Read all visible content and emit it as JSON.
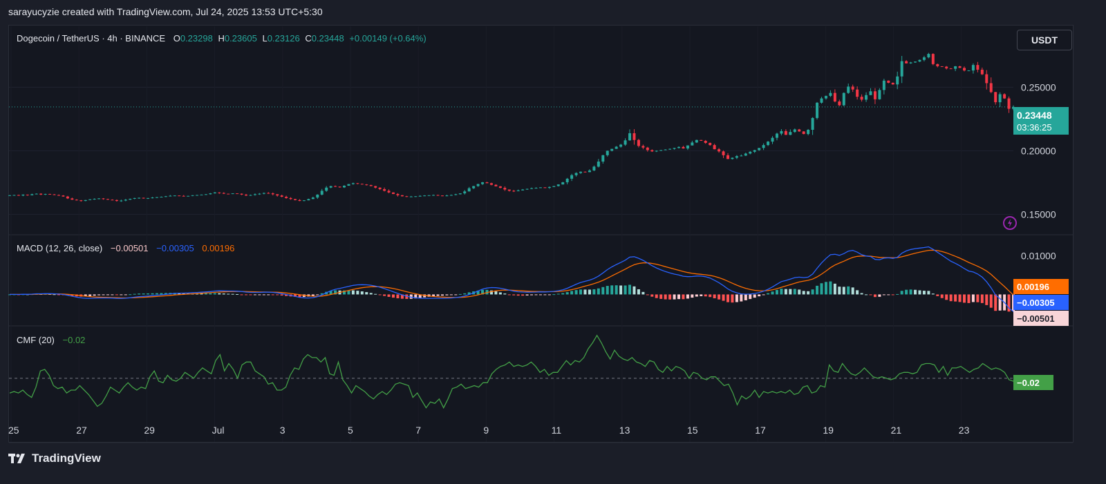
{
  "header": {
    "watermark": "sarayucyzie created with TradingView.com, Jul 24, 2025 13:53 UTC+5:30"
  },
  "currency_button": "USDT",
  "legend": {
    "symbol": "Dogecoin / TetherUS · 4h · BINANCE",
    "o_label": "O",
    "o_value": "0.23298",
    "h_label": "H",
    "h_value": "0.23605",
    "l_label": "L",
    "l_value": "0.23126",
    "c_label": "C",
    "c_value": "0.23448",
    "change": "+0.00149 (+0.64%)"
  },
  "macd_legend": {
    "name": "MACD (12, 26, close)",
    "hist": "−0.00501",
    "macd": "−0.00305",
    "signal": "0.00196"
  },
  "cmf_legend": {
    "name": "CMF (20)",
    "value": "−0.02"
  },
  "price_tag": {
    "price": "0.23448",
    "countdown": "03:36:25"
  },
  "macd_tags": {
    "signal": "0.00196",
    "macd": "−0.00305",
    "hist": "−0.00501"
  },
  "cmf_tag": "−0.02",
  "footer": {
    "brand": "TradingView"
  },
  "colors": {
    "up": "#26a69a",
    "down": "#f23645",
    "macd": "#2962ff",
    "signal": "#ff6d00",
    "cmf": "#43a047"
  },
  "chart_data": [
    {
      "type": "candlestick",
      "ylim": [
        0.135,
        0.298
      ],
      "yticks": [
        "0.25000",
        "0.20000",
        "0.15000"
      ],
      "ytick_values": [
        0.25,
        0.2,
        0.15
      ],
      "xticks": [
        "25",
        "27",
        "29",
        "Jul",
        "3",
        "5",
        "7",
        "9",
        "11",
        "13",
        "15",
        "17",
        "19",
        "21",
        "23"
      ],
      "closes": [
        0.165,
        0.1652,
        0.1648,
        0.1655,
        0.165,
        0.1658,
        0.1662,
        0.1655,
        0.166,
        0.1657,
        0.1652,
        0.1648,
        0.164,
        0.1625,
        0.1615,
        0.161,
        0.1605,
        0.1612,
        0.1618,
        0.1622,
        0.1625,
        0.162,
        0.1615,
        0.1612,
        0.1605,
        0.1608,
        0.1615,
        0.1622,
        0.1628,
        0.163,
        0.1625,
        0.1628,
        0.1632,
        0.1635,
        0.1638,
        0.1642,
        0.1646,
        0.1648,
        0.1645,
        0.1642,
        0.1645,
        0.165,
        0.1652,
        0.1655,
        0.1658,
        0.1665,
        0.1672,
        0.1668,
        0.1662,
        0.166,
        0.1665,
        0.1662,
        0.1655,
        0.1648,
        0.1652,
        0.1658,
        0.1662,
        0.1668,
        0.1665,
        0.1658,
        0.1648,
        0.1638,
        0.1628,
        0.162,
        0.1612,
        0.1605,
        0.161,
        0.162,
        0.1632,
        0.1655,
        0.1685,
        0.171,
        0.1722,
        0.1718,
        0.1712,
        0.1725,
        0.1738,
        0.1745,
        0.174,
        0.1735,
        0.173,
        0.1722,
        0.171,
        0.1698,
        0.1685,
        0.1672,
        0.166,
        0.165,
        0.1642,
        0.1638,
        0.164,
        0.1642,
        0.1645,
        0.1648,
        0.165,
        0.1652,
        0.1648,
        0.1645,
        0.1648,
        0.1652,
        0.1658,
        0.1665,
        0.168,
        0.1705,
        0.1722,
        0.1738,
        0.1752,
        0.1745,
        0.1732,
        0.172,
        0.1708,
        0.1695,
        0.1685,
        0.1682,
        0.1688,
        0.1695,
        0.17,
        0.1705,
        0.1708,
        0.1712,
        0.1708,
        0.1715,
        0.1722,
        0.1735,
        0.1752,
        0.178,
        0.1808,
        0.1825,
        0.1835,
        0.1832,
        0.1845,
        0.1875,
        0.1915,
        0.1965,
        0.2,
        0.2015,
        0.2032,
        0.2048,
        0.2082,
        0.2138,
        0.2085,
        0.2038,
        0.2025,
        0.2005,
        0.1995,
        0.2,
        0.2005,
        0.201,
        0.2015,
        0.2022,
        0.203,
        0.2018,
        0.2042,
        0.2065,
        0.2085,
        0.2078,
        0.2062,
        0.2045,
        0.2012,
        0.1995,
        0.1965,
        0.1935,
        0.1945,
        0.1958,
        0.1962,
        0.1978,
        0.1992,
        0.2005,
        0.2022,
        0.2045,
        0.2072,
        0.2102,
        0.2135,
        0.2155,
        0.2125,
        0.2148,
        0.2168,
        0.2152,
        0.2132,
        0.2165,
        0.2258,
        0.2378,
        0.2412,
        0.2432,
        0.2455,
        0.2388,
        0.2358,
        0.2455,
        0.2505,
        0.2482,
        0.2425,
        0.2402,
        0.2438,
        0.2468,
        0.2405,
        0.2478,
        0.2552,
        0.2535,
        0.2522,
        0.2585,
        0.2705,
        0.2688,
        0.2695,
        0.2702,
        0.2715,
        0.2735,
        0.2762,
        0.2682,
        0.2665,
        0.2662,
        0.2648,
        0.2645,
        0.2665,
        0.2652,
        0.2632,
        0.2632,
        0.2675,
        0.2638,
        0.2602,
        0.2532,
        0.2462,
        0.2382,
        0.2445,
        0.2412,
        0.233,
        0.2345
      ],
      "last_close": 0.23448
    },
    {
      "type": "macd",
      "title": "MACD (12, 26, close)",
      "ylim": [
        -0.0078,
        0.0153
      ],
      "yticks": [
        "0.01000"
      ],
      "ytick_values": [
        0.01
      ],
      "macd_last": -0.00305,
      "signal_last": 0.00196,
      "hist_last": -0.00501
    },
    {
      "type": "line",
      "title": "CMF (20)",
      "ylim": [
        -0.3,
        0.35
      ],
      "zero_line": 0,
      "last": -0.02,
      "values": [
        -0.1,
        -0.09,
        -0.1,
        -0.08,
        -0.11,
        -0.13,
        -0.06,
        0.05,
        0.06,
        0.02,
        -0.05,
        -0.07,
        -0.06,
        -0.1,
        -0.08,
        -0.08,
        -0.05,
        -0.08,
        -0.11,
        -0.15,
        -0.19,
        -0.17,
        -0.12,
        -0.06,
        -0.08,
        -0.1,
        -0.06,
        -0.03,
        -0.06,
        -0.08,
        -0.06,
        -0.07,
        0.01,
        0.05,
        -0.02,
        -0.03,
        0.02,
        -0.01,
        -0.02,
        0.0,
        0.04,
        0.02,
        0.0,
        0.04,
        0.07,
        0.05,
        0.03,
        0.12,
        0.16,
        0.05,
        0.1,
        0.06,
        0.0,
        0.09,
        0.11,
        0.11,
        0.05,
        0.03,
        0.01,
        -0.04,
        -0.03,
        -0.08,
        -0.08,
        -0.06,
        0.02,
        0.07,
        0.06,
        0.13,
        0.16,
        0.14,
        0.14,
        0.11,
        0.14,
        0.03,
        0.02,
        0.11,
        -0.01,
        -0.05,
        -0.1,
        -0.05,
        -0.07,
        -0.09,
        -0.12,
        -0.14,
        -0.11,
        -0.09,
        -0.11,
        -0.08,
        -0.04,
        -0.03,
        -0.04,
        -0.05,
        -0.13,
        -0.1,
        -0.15,
        -0.2,
        -0.16,
        -0.17,
        -0.14,
        -0.2,
        -0.14,
        -0.07,
        -0.06,
        -0.04,
        -0.07,
        -0.06,
        -0.05,
        -0.06,
        -0.03,
        -0.03,
        0.03,
        0.06,
        0.08,
        0.09,
        0.11,
        0.08,
        0.09,
        0.08,
        0.09,
        0.11,
        0.08,
        0.04,
        0.06,
        0.02,
        0.04,
        0.04,
        0.08,
        0.12,
        0.09,
        0.12,
        0.11,
        0.14,
        0.2,
        0.24,
        0.29,
        0.24,
        0.18,
        0.13,
        0.19,
        0.15,
        0.13,
        0.12,
        0.14,
        0.11,
        0.1,
        0.08,
        0.12,
        0.11,
        0.06,
        0.04,
        0.08,
        0.05,
        0.08,
        0.07,
        0.05,
        0.0,
        0.04,
        0.03,
        0.0,
        -0.01,
        0.01,
        0.01,
        -0.02,
        -0.05,
        -0.04,
        -0.1,
        -0.18,
        -0.12,
        -0.14,
        -0.12,
        -0.08,
        -0.13,
        -0.09,
        -0.1,
        -0.09,
        -0.1,
        -0.09,
        -0.1,
        -0.08,
        -0.11,
        -0.1,
        -0.06,
        -0.05,
        -0.1,
        -0.09,
        -0.05,
        -0.06,
        0.09,
        0.05,
        0.04,
        0.1,
        0.06,
        0.03,
        0.02,
        0.04,
        0.07,
        0.04,
        0.01,
        0.0,
        0.01,
        0.0,
        -0.01,
        0.0,
        0.03,
        0.04,
        0.04,
        0.03,
        0.04,
        0.09,
        0.1,
        0.1,
        0.09,
        0.04,
        0.08,
        0.02,
        0.07,
        0.07,
        0.08,
        0.06,
        0.04,
        0.06,
        0.07,
        0.1,
        0.08,
        0.06,
        0.07,
        0.06,
        0.04,
        -0.01,
        -0.02
      ]
    }
  ]
}
